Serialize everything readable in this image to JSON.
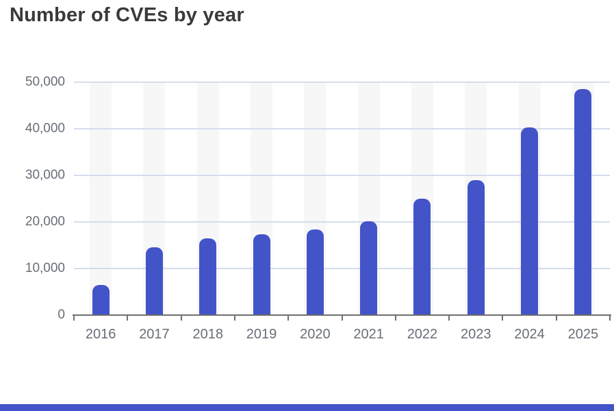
{
  "title": "Number of CVEs by year",
  "colors": {
    "title_text": "#3a3a3a",
    "bar": "#4353c8",
    "grid": "#d6dcee",
    "stripe": "#f7f7f8",
    "axis": "#6f6f6f",
    "axis_label": "#686d76",
    "footer": "#4353c8"
  },
  "chart_data": {
    "type": "bar",
    "title": "Number of CVEs by year",
    "categories": [
      "2016",
      "2017",
      "2018",
      "2019",
      "2020",
      "2021",
      "2022",
      "2023",
      "2024",
      "2025"
    ],
    "values": [
      6400,
      14500,
      16500,
      17300,
      18400,
      20100,
      25000,
      29000,
      40300,
      48600
    ],
    "xlabel": "",
    "ylabel": "",
    "ylim": [
      0,
      50000
    ],
    "ytick_step": 10000,
    "ytick_labels": [
      "0",
      "10,000",
      "20,000",
      "30,000",
      "40,000",
      "50,000"
    ],
    "grid": true,
    "legend": "none",
    "bar_color": "#4353c8",
    "column_band_color": "#f7f7f8"
  }
}
